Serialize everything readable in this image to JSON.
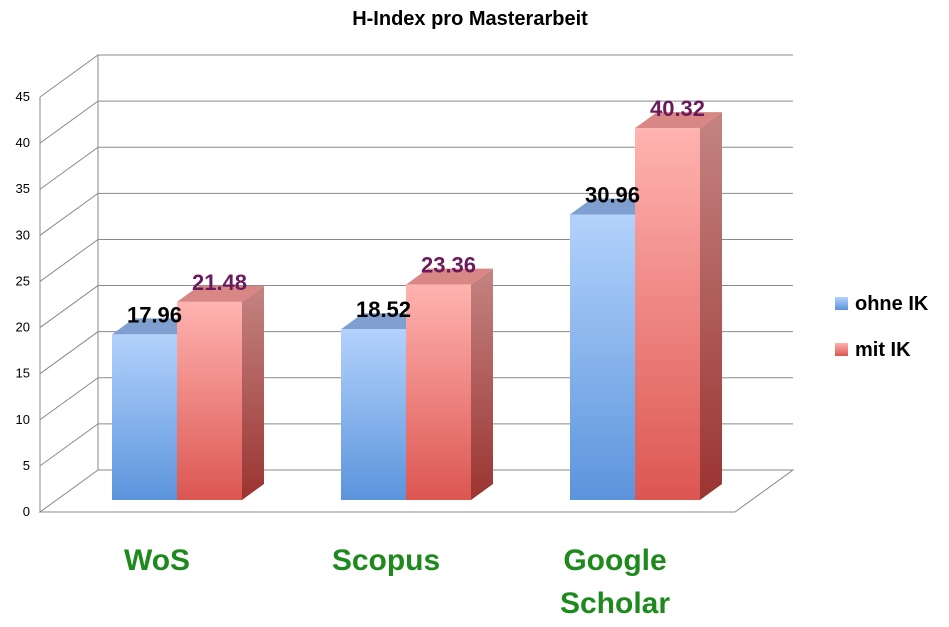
{
  "chart_data": {
    "type": "bar",
    "title": "H-Index pro Masterarbeit",
    "categories": [
      [
        "WoS"
      ],
      [
        "Scopus"
      ],
      [
        "Google",
        "Scholar"
      ]
    ],
    "series": [
      {
        "name": "ohne IK",
        "values": [
          17.96,
          18.52,
          30.96
        ],
        "color": "#8fb8ee",
        "label_color": "#000000"
      },
      {
        "name": "mit IK",
        "values": [
          21.48,
          23.36,
          40.32
        ],
        "color": "#f08c88",
        "label_color": "#6b1a5c"
      }
    ],
    "data_labels": [
      [
        "17.96",
        "18.52",
        "30.96"
      ],
      [
        "21.48",
        "23.36",
        "40.32"
      ]
    ],
    "ylim": [
      0,
      45
    ],
    "yticks": [
      "0",
      "5",
      "10",
      "15",
      "20",
      "25",
      "30",
      "35",
      "40",
      "45"
    ],
    "grid": true,
    "legend": "right",
    "category_color": "#1e8a1e"
  }
}
